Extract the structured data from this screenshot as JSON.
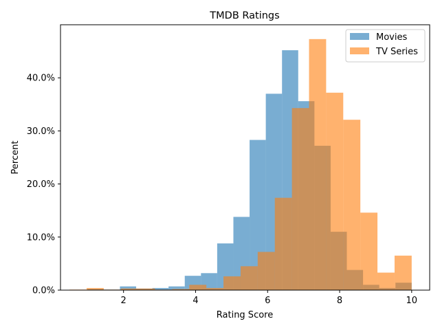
{
  "chart_data": {
    "type": "bar",
    "subtype": "overlaid-histogram",
    "title": "TMDB Ratings",
    "xlabel": "Rating Score",
    "ylabel": "Percent",
    "xlim": [
      0.25,
      10.5
    ],
    "ylim": [
      0,
      50
    ],
    "xticks": [
      2,
      4,
      6,
      8,
      10
    ],
    "xtick_labels": [
      "2",
      "4",
      "6",
      "8",
      "10"
    ],
    "yticks": [
      0,
      10,
      20,
      30,
      40
    ],
    "ytick_labels": [
      "0.0%",
      "10.0%",
      "20.0%",
      "30.0%",
      "40.0%"
    ],
    "grid": false,
    "legend_position": "top-right",
    "series": [
      {
        "name": "Movies",
        "color": "#1f77b4",
        "opacity": 0.6,
        "bin_edges": [
          1.0,
          1.45,
          1.9,
          2.35,
          2.8,
          3.25,
          3.7,
          4.15,
          4.6,
          5.05,
          5.5,
          5.95,
          6.4,
          6.85,
          7.3,
          7.75,
          8.2,
          8.65,
          9.1,
          9.55,
          10.0
        ],
        "values": [
          0.2,
          0.1,
          0.7,
          0.3,
          0.4,
          0.7,
          2.7,
          3.2,
          8.8,
          13.8,
          28.3,
          37.0,
          45.2,
          35.6,
          27.2,
          11.0,
          3.8,
          1.0,
          0.4,
          1.4
        ]
      },
      {
        "name": "TV Series",
        "color": "#ff7f0e",
        "opacity": 0.6,
        "bin_edges": [
          0.5,
          0.975,
          1.45,
          1.925,
          2.4,
          2.875,
          3.35,
          3.825,
          4.3,
          4.775,
          5.25,
          5.725,
          6.2,
          6.675,
          7.15,
          7.625,
          8.1,
          8.575,
          9.05,
          9.525,
          10.0
        ],
        "values": [
          0.1,
          0.4,
          0.1,
          0.3,
          0.3,
          0.1,
          0.2,
          1.0,
          0.4,
          2.6,
          4.5,
          7.2,
          17.4,
          34.3,
          47.3,
          37.2,
          32.1,
          14.6,
          3.3,
          6.5
        ]
      }
    ]
  }
}
